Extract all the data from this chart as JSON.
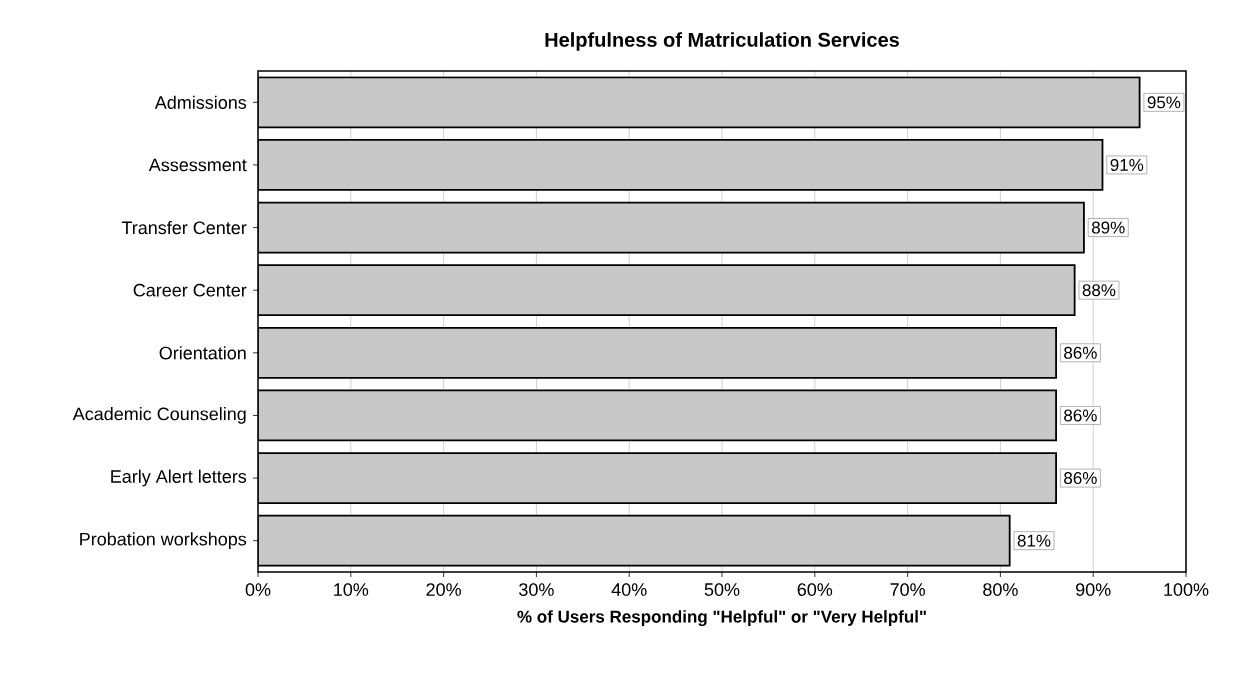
{
  "chart_data": {
    "type": "bar",
    "orientation": "horizontal",
    "title": "Helpfulness of Matriculation Services",
    "xlabel": "% of Users Responding \"Helpful\" or \"Very Helpful\"",
    "categories": [
      "Admissions",
      "Assessment",
      "Transfer Center",
      "Career Center",
      "Orientation",
      "Academic Counseling",
      "Early Alert letters",
      "Probation workshops"
    ],
    "values": [
      95,
      91,
      89,
      88,
      86,
      86,
      86,
      81
    ],
    "value_labels": [
      "95%",
      "91%",
      "89%",
      "88%",
      "86%",
      "86%",
      "86%",
      "81%"
    ],
    "color": "#c8c8c8",
    "xlim": [
      0,
      100
    ],
    "xticks": [
      {
        "value": 0,
        "label": "0%"
      },
      {
        "value": 10,
        "label": "10%"
      },
      {
        "value": 20,
        "label": "20%"
      },
      {
        "value": 30,
        "label": "30%"
      },
      {
        "value": 40,
        "label": "40%"
      },
      {
        "value": 50,
        "label": "50%"
      },
      {
        "value": 60,
        "label": "60%"
      },
      {
        "value": 70,
        "label": "70%"
      },
      {
        "value": 80,
        "label": "80%"
      },
      {
        "value": 90,
        "label": "90%"
      },
      {
        "value": 100,
        "label": "100%"
      }
    ],
    "grid": "x"
  }
}
